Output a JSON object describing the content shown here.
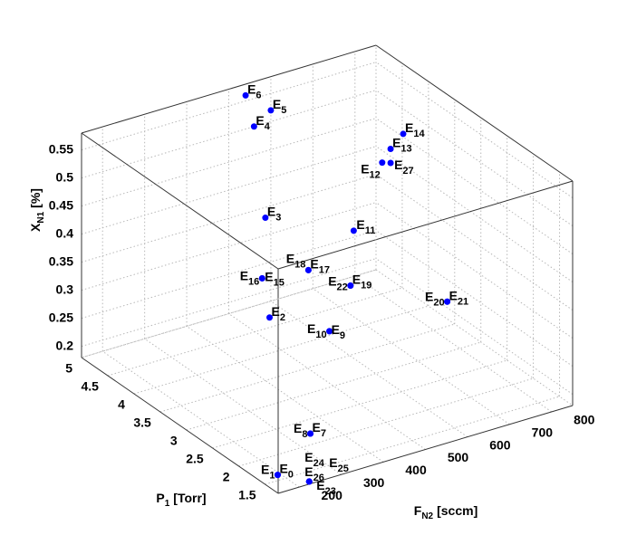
{
  "chart_data": {
    "type": "scatter3d",
    "xlabel": {
      "base": "F",
      "sub": "N2",
      "rest": "[sccm]"
    },
    "ylabel": {
      "base": "P",
      "sub": "1",
      "rest": "[Torr]"
    },
    "zlabel": {
      "base": "X",
      "sub": "N1",
      "rest": "[%]"
    },
    "xlim": [
      150,
      850
    ],
    "ylim": [
      1.25,
      5
    ],
    "zlim": [
      0.18,
      0.58
    ],
    "xticks": [
      200,
      300,
      400,
      500,
      600,
      700,
      800
    ],
    "yticks": [
      1.5,
      2,
      2.5,
      3,
      3.5,
      4,
      4.5,
      5
    ],
    "zticks": [
      0.2,
      0.25,
      0.3,
      0.35,
      0.4,
      0.45,
      0.5,
      0.55
    ],
    "grid": true,
    "color": "#0000ff",
    "labels": [
      "E0",
      "E1",
      "E2",
      "E3",
      "E4",
      "E5",
      "E6",
      "E7",
      "E8",
      "E9",
      "E10",
      "E11",
      "E12",
      "E13",
      "E14",
      "E15",
      "E16",
      "E17",
      "E18",
      "E19",
      "E20",
      "E21",
      "E22",
      "E23",
      "E24",
      "E25",
      "E26",
      "E27"
    ],
    "x": [
      180,
      180,
      410,
      400,
      560,
      600,
      540,
      320,
      320,
      490,
      490,
      610,
      740,
      760,
      790,
      330,
      330,
      440,
      440,
      540,
      770,
      770,
      540,
      230,
      230,
      230,
      230,
      760
    ],
    "y": [
      1.5,
      1.5,
      3.5,
      3.5,
      5,
      5,
      5,
      2,
      2,
      3,
      3,
      3.5,
      4,
      4,
      4,
      3,
      3,
      3,
      3,
      3,
      3,
      3,
      3,
      1.3,
      1.3,
      1.3,
      1.3,
      4
    ],
    "z": [
      0.19,
      0.19,
      0.29,
      0.47,
      0.5,
      0.52,
      0.56,
      0.2,
      0.2,
      0.28,
      0.28,
      0.4,
      0.46,
      0.48,
      0.5,
      0.41,
      0.41,
      0.4,
      0.4,
      0.35,
      0.27,
      0.27,
      0.35,
      0.18,
      0.18,
      0.18,
      0.18,
      0.455
    ]
  }
}
